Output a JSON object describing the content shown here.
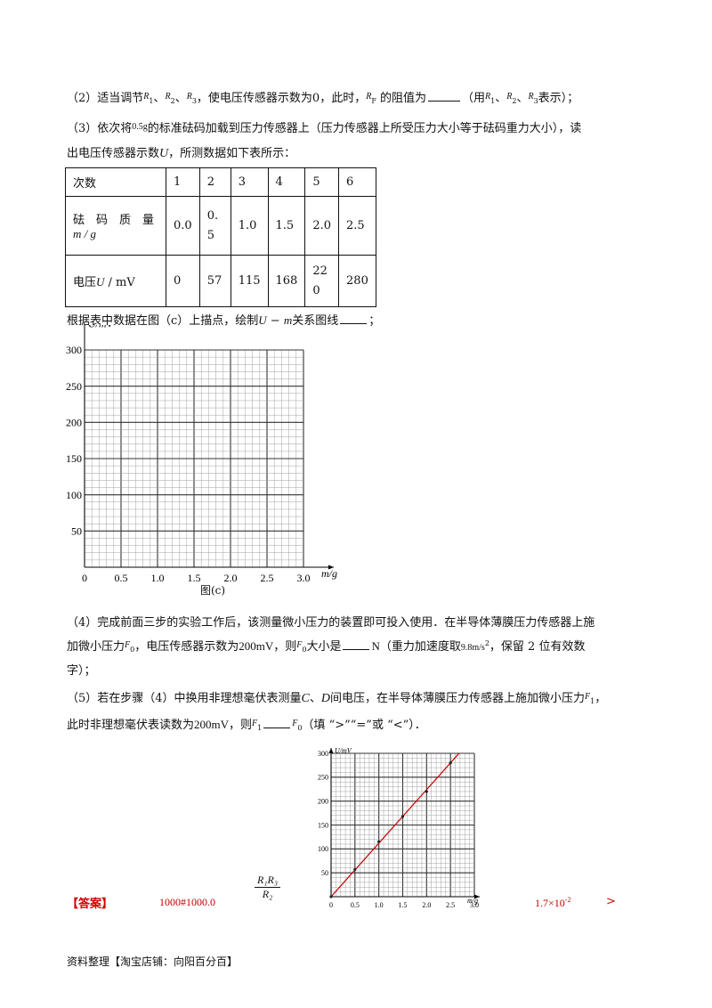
{
  "q2": {
    "prefix": "（2）适当调节",
    "r1": "R",
    "r1_sub": "1",
    "sep1": "、",
    "r2": "R",
    "r2_sub": "2",
    "sep2": "、",
    "r3": "R",
    "r3_sub": "3",
    "mid": "，使电压传感器示数为0，此时，",
    "rf": "R",
    "rf_sub": "F",
    "after_rf": " 的阻值为",
    "paren_open": "（用",
    "p_r1": "R",
    "p_r1_sub": "1",
    "p_sep1": "、",
    "p_r2": "R",
    "p_r2_sub": "2",
    "p_sep2": "、",
    "p_r3": "R",
    "p_r3_sub": "3",
    "paren_close": "表示）；"
  },
  "q3": {
    "line1_a": "（3）依次将",
    "mass": "0.5g",
    "line1_b": "的标准砝码加载到压力传感器上（压力传感器上所受压力大小等于砝码重力大小），读",
    "line2_a": "出电压传感器示数",
    "u": "U",
    "line2_b": "，所测数据如下表所示：",
    "plot_a": "根据表中数据在图（c）上描点，绘制",
    "plot_u": "U",
    "plot_dash": " − ",
    "plot_m": "m",
    "plot_b": "关系图线",
    "plot_end": "；"
  },
  "table": {
    "row_count_label": "次数",
    "counts": [
      "1",
      "2",
      "3",
      "4",
      "5",
      "6"
    ],
    "mass_label_1": "砝　码　质　量",
    "mass_label_2": "m / g",
    "masses": [
      "0.0",
      "0.\n5",
      "1.0",
      "1.5",
      "2.0",
      "2.5"
    ],
    "voltage_label_a": "电压",
    "voltage_label_u": "U",
    "voltage_label_b": " / mV",
    "voltages": [
      "0",
      "57",
      "115",
      "168",
      "22\n0",
      "280"
    ]
  },
  "chart_c": {
    "ylabel": "U/mV",
    "xlabel": "m/g",
    "caption": "图(c)",
    "yticks": [
      "300",
      "250",
      "200",
      "150",
      "100",
      "50"
    ],
    "xticks": [
      "0",
      "0.5",
      "1.0",
      "1.5",
      "2.0",
      "2.5",
      "3.0"
    ]
  },
  "q4": {
    "line1": "（4）完成前面三步的实验工作后，该测量微小压力的装置即可投入使用．在半导体薄膜压力传感器上施",
    "line2_a": "加微小压力",
    "f0": "F",
    "f0_sub": "0",
    "line2_b": "，电压传感器示数为",
    "v200": "200mV",
    "line2_c": "，则",
    "f0b": "F",
    "f0b_sub": "0",
    "line2_d": "大小是",
    "unit_n": "N",
    "line2_e": "（重力加速度取",
    "g": "9.8m/s",
    "g_sup": "2",
    "line2_f": "，保留 2 位有效数",
    "line3": "字）；"
  },
  "q5": {
    "line1_a": "（5）若在步骤（4）中换用非理想毫伏表测量",
    "c": "C",
    "sep": "、",
    "d": "D",
    "line1_b": "间电压，在半导体薄膜压力传感器上施加微小压力",
    "f1": "F",
    "f1_sub": "1",
    "line1_c": "，",
    "line2_a": "此时非理想毫伏表读数为",
    "v200": "200mV",
    "line2_b": "，则",
    "f1b": "F",
    "f1b_sub": "1",
    "f0": "F",
    "f0_sub": "0",
    "line2_c": "（填 “>”“=”或 “<”）．"
  },
  "answer": {
    "label": "【答案】",
    "a1": "1000#1000.0",
    "frac_num": "R₁R₃",
    "frac_den": "R₂",
    "a4": "1.7×10",
    "a4_sup": "-2",
    "a5": ">"
  },
  "chart_answer": {
    "ylabel": "U/mV",
    "xlabel": "m/g",
    "yticks": [
      "300",
      "250",
      "200",
      "150",
      "100",
      "50"
    ],
    "xticks": [
      "0",
      "0.5",
      "1.0",
      "1.5",
      "2.0",
      "2.5",
      "3.0"
    ],
    "line_color": "#cc0000"
  },
  "chart_data": [
    {
      "type": "scatter",
      "xlabel": "m/g",
      "ylabel": "U/mV",
      "xlim": [
        0,
        3.0
      ],
      "ylim": [
        0,
        300
      ],
      "grid": true,
      "x": [],
      "y": []
    },
    {
      "type": "line",
      "xlabel": "m/g",
      "ylabel": "U/mV",
      "xlim": [
        0,
        3.0
      ],
      "ylim": [
        0,
        300
      ],
      "grid": true,
      "x": [
        0.0,
        0.5,
        1.0,
        1.5,
        2.0,
        2.5
      ],
      "y": [
        0,
        57,
        115,
        168,
        220,
        280
      ],
      "color": "#cc0000"
    }
  ],
  "footer": "资料整理【淘宝店铺：向阳百分百】"
}
